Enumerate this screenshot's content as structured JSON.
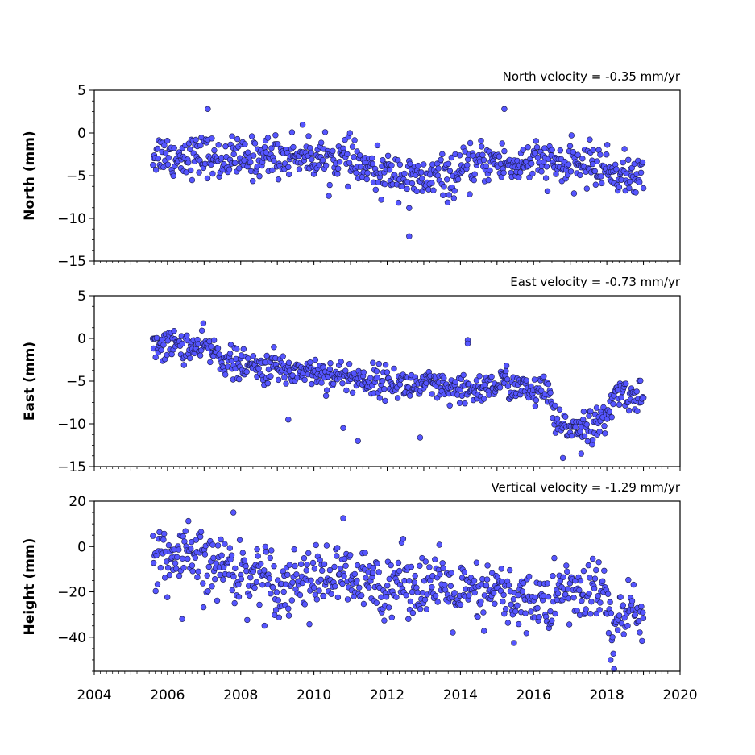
{
  "chart_data": [
    {
      "type": "scatter",
      "panel": "north",
      "ylabel": "North (mm)",
      "annotation": "North velocity = -0.35 mm/yr",
      "xlim": [
        2004,
        2020
      ],
      "ylim": [
        -15,
        5
      ],
      "yticks": [
        5,
        0,
        -5,
        -10,
        -15
      ],
      "ytick_labels": [
        "5",
        "0",
        "−5",
        "−10",
        "−15"
      ],
      "marker_color": "#5555ff",
      "series": [
        {
          "x": [
            2005.6,
            2005.9,
            2006.2,
            2006.5,
            2006.8,
            2007.1,
            2007.4,
            2007.7,
            2008.0,
            2008.3,
            2008.6,
            2008.9,
            2009.2,
            2009.5,
            2009.8,
            2010.1,
            2010.4,
            2010.7,
            2011.0,
            2011.3,
            2011.6,
            2011.9,
            2012.2,
            2012.5,
            2012.8,
            2013.1,
            2013.4,
            2013.7,
            2014.0,
            2014.3,
            2014.6,
            2014.9,
            2015.2,
            2015.5,
            2015.8,
            2016.1,
            2016.4,
            2016.7,
            2017.0,
            2017.3,
            2017.6,
            2017.9,
            2018.2,
            2018.5,
            2018.8,
            2019.0
          ],
          "y": [
            -2.5,
            -2.2,
            -3.0,
            -2.4,
            -2.8,
            -2.6,
            -3.4,
            -2.9,
            -3.1,
            -3.0,
            -2.7,
            -2.5,
            -2.9,
            -2.3,
            -2.6,
            -2.8,
            -3.2,
            -2.9,
            -3.3,
            -4.0,
            -4.6,
            -5.0,
            -4.4,
            -5.2,
            -5.6,
            -5.5,
            -5.0,
            -5.3,
            -4.7,
            -4.0,
            -3.5,
            -3.2,
            -3.6,
            -3.9,
            -3.3,
            -3.5,
            -3.4,
            -3.8,
            -4.0,
            -3.7,
            -3.6,
            -4.1,
            -4.6,
            -4.9,
            -5.2,
            -5.4
          ]
        }
      ],
      "outliers": {
        "x": [
          2007.1,
          2015.2,
          2012.6,
          2012.6
        ],
        "y": [
          2.8,
          2.8,
          -12.1,
          -8.8
        ]
      },
      "spread": 1.2
    },
    {
      "type": "scatter",
      "panel": "east",
      "ylabel": "East (mm)",
      "annotation": "East velocity = -0.73 mm/yr",
      "xlim": [
        2004,
        2020
      ],
      "ylim": [
        -15,
        5
      ],
      "yticks": [
        5,
        0,
        -5,
        -10,
        -15
      ],
      "ytick_labels": [
        "5",
        "0",
        "−5",
        "−10",
        "−15"
      ],
      "marker_color": "#5555ff",
      "series": [
        {
          "x": [
            2005.6,
            2005.9,
            2006.2,
            2006.5,
            2006.8,
            2007.1,
            2007.4,
            2007.7,
            2008.0,
            2008.3,
            2008.6,
            2008.9,
            2009.2,
            2009.5,
            2009.8,
            2010.1,
            2010.4,
            2010.7,
            2011.0,
            2011.3,
            2011.6,
            2011.9,
            2012.2,
            2012.5,
            2012.8,
            2013.1,
            2013.4,
            2013.7,
            2014.0,
            2014.3,
            2014.6,
            2014.9,
            2015.2,
            2015.5,
            2015.8,
            2016.1,
            2016.4,
            2016.6,
            2016.8,
            2017.1,
            2017.4,
            2017.7,
            2018.0,
            2018.2,
            2018.5,
            2018.8,
            2019.0
          ],
          "y": [
            -0.5,
            -0.8,
            -0.6,
            -1.0,
            -1.2,
            -1.0,
            -2.0,
            -2.8,
            -3.2,
            -3.4,
            -3.6,
            -3.3,
            -3.7,
            -3.9,
            -3.6,
            -4.0,
            -4.2,
            -4.4,
            -4.5,
            -4.8,
            -5.0,
            -4.9,
            -5.2,
            -5.4,
            -5.6,
            -5.5,
            -5.8,
            -6.2,
            -6.4,
            -6.0,
            -5.8,
            -5.5,
            -5.0,
            -5.6,
            -6.2,
            -6.3,
            -6.1,
            -10.2,
            -10.5,
            -10.2,
            -10.0,
            -10.1,
            -9.6,
            -6.5,
            -6.4,
            -6.8,
            -7.0
          ]
        }
      ],
      "outliers": {
        "x": [
          2014.2,
          2014.2,
          2011.2,
          2010.8,
          2009.3,
          2012.9,
          2016.8,
          2017.3
        ],
        "y": [
          -0.2,
          -0.6,
          -12.0,
          -10.5,
          -9.5,
          -11.6,
          -14.0,
          -13.5
        ]
      },
      "spread": 0.9
    },
    {
      "type": "scatter",
      "panel": "height",
      "ylabel": "Height (mm)",
      "annotation": "Vertical velocity = -1.29 mm/yr",
      "xlim": [
        2004,
        2020
      ],
      "ylim": [
        -55,
        20
      ],
      "yticks": [
        20,
        0,
        -20,
        -40
      ],
      "ytick_labels": [
        "20",
        "0",
        "−20",
        "−40"
      ],
      "xticks": [
        2004,
        2006,
        2008,
        2010,
        2012,
        2014,
        2016,
        2018,
        2020
      ],
      "xtick_labels": [
        "2004",
        "2006",
        "2008",
        "2010",
        "2012",
        "2014",
        "2016",
        "2018",
        "2020"
      ],
      "marker_color": "#5555ff",
      "series": [
        {
          "x": [
            2005.6,
            2005.9,
            2006.2,
            2006.5,
            2006.8,
            2007.1,
            2007.4,
            2007.7,
            2008.0,
            2008.3,
            2008.6,
            2008.9,
            2009.2,
            2009.5,
            2009.8,
            2010.1,
            2010.4,
            2010.7,
            2011.0,
            2011.3,
            2011.6,
            2011.9,
            2012.2,
            2012.5,
            2012.8,
            2013.1,
            2013.4,
            2013.7,
            2014.0,
            2014.3,
            2014.6,
            2014.9,
            2015.2,
            2015.5,
            2015.8,
            2016.1,
            2016.4,
            2016.7,
            2017.0,
            2017.3,
            2017.6,
            2017.9,
            2018.2,
            2018.5,
            2018.8,
            2019.0
          ],
          "y": [
            -3,
            -5,
            -7,
            -4,
            -6,
            -10,
            -8,
            -9,
            -12,
            -13,
            -11,
            -15,
            -18,
            -14,
            -13,
            -16,
            -12,
            -14,
            -15,
            -17,
            -16,
            -18,
            -14,
            -15,
            -17,
            -16,
            -18,
            -20,
            -22,
            -21,
            -24,
            -18,
            -22,
            -26,
            -22,
            -24,
            -28,
            -18,
            -20,
            -22,
            -19,
            -20,
            -36,
            -30,
            -28,
            -32
          ]
        }
      ],
      "outliers": {
        "x": [
          2010.8,
          2007.8,
          2006.4,
          2018.1,
          2018.2
        ],
        "y": [
          12.5,
          15.0,
          -32.0,
          -50.0,
          -54.0
        ]
      },
      "spread": 7.0
    }
  ]
}
